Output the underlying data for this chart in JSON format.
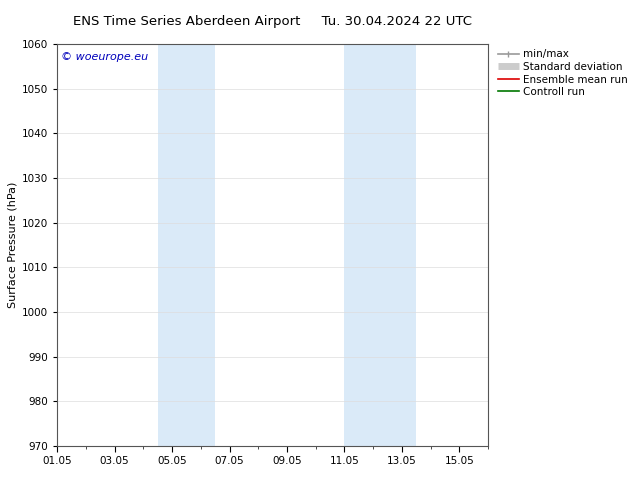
{
  "title_left": "ENS Time Series Aberdeen Airport",
  "title_right": "Tu. 30.04.2024 22 UTC",
  "ylabel": "Surface Pressure (hPa)",
  "ylim": [
    970,
    1060
  ],
  "yticks": [
    970,
    980,
    990,
    1000,
    1010,
    1020,
    1030,
    1040,
    1050,
    1060
  ],
  "xlim": [
    0,
    15.0
  ],
  "xtick_labels": [
    "01.05",
    "03.05",
    "05.05",
    "07.05",
    "09.05",
    "11.05",
    "13.05",
    "15.05"
  ],
  "xtick_positions": [
    0,
    2,
    4,
    6,
    8,
    10,
    12,
    14
  ],
  "shaded_bands": [
    {
      "xmin": 3.5,
      "xmax": 5.5
    },
    {
      "xmin": 10.0,
      "xmax": 12.5
    }
  ],
  "shade_color": "#daeaf8",
  "watermark_text": "© woeurope.eu",
  "watermark_color": "#0000bb",
  "legend_items": [
    {
      "label": "min/max",
      "color": "#999999",
      "lw": 1.2
    },
    {
      "label": "Standard deviation",
      "color": "#cccccc",
      "lw": 5
    },
    {
      "label": "Ensemble mean run",
      "color": "#dd0000",
      "lw": 1.2
    },
    {
      "label": "Controll run",
      "color": "#007700",
      "lw": 1.2
    }
  ],
  "bg_color": "#ffffff",
  "grid_color": "#dddddd",
  "title_fontsize": 9.5,
  "ylabel_fontsize": 8,
  "tick_fontsize": 7.5,
  "legend_fontsize": 7.5,
  "watermark_fontsize": 8
}
